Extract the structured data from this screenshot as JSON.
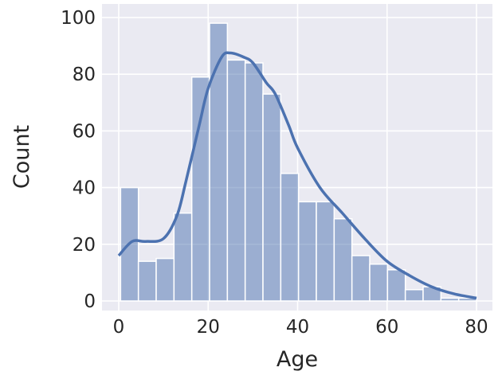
{
  "chart_data": {
    "type": "bar",
    "subtype": "histogram with kde line",
    "xlabel": "Age",
    "ylabel": "Count",
    "xlim": [
      -4,
      84
    ],
    "ylim": [
      0,
      103
    ],
    "xticks": [
      0,
      20,
      40,
      60,
      80
    ],
    "yticks": [
      0,
      20,
      40,
      60,
      80,
      100
    ],
    "grid": true,
    "bin_range": [
      0.42,
      80
    ],
    "bin_count": 20,
    "values": [
      40,
      14,
      15,
      31,
      79,
      98,
      85,
      84,
      73,
      45,
      35,
      35,
      29,
      16,
      13,
      11,
      4,
      5,
      1,
      1
    ],
    "kde": {
      "x": [
        0,
        3,
        6,
        10,
        13,
        15,
        18,
        20,
        23,
        25,
        28,
        30,
        33,
        35,
        38,
        40,
        45,
        50,
        55,
        60,
        65,
        70,
        75,
        80
      ],
      "y": [
        16,
        21,
        21,
        22,
        30,
        42,
        62,
        75,
        86,
        87.5,
        86,
        84,
        77,
        73,
        62,
        54,
        40,
        31,
        22,
        14,
        9,
        5,
        2.5,
        1
      ]
    },
    "colors": {
      "bar": "#4c72b0",
      "background": "#eaeaf2",
      "grid": "#ffffff"
    }
  }
}
